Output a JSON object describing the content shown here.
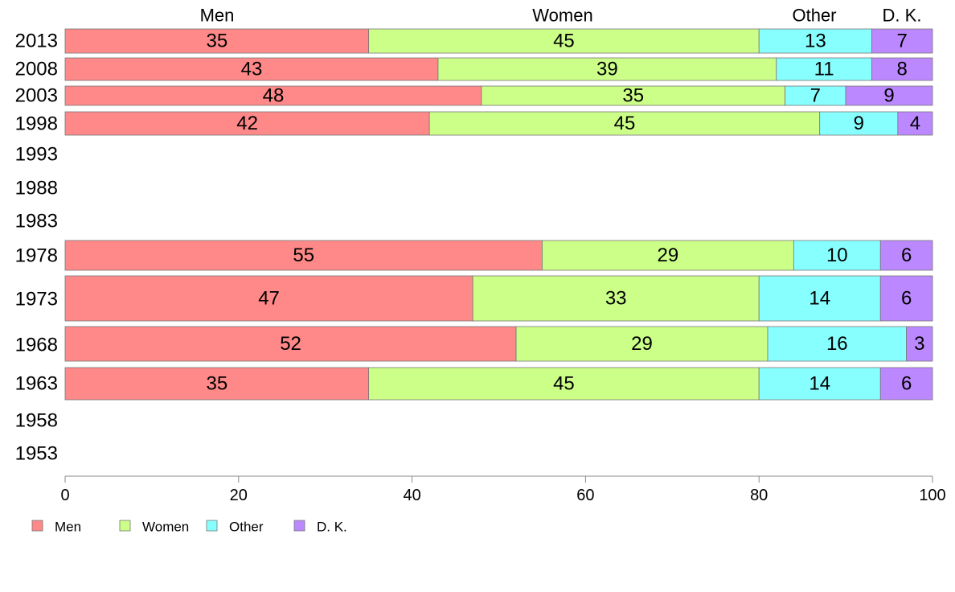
{
  "chart_data": {
    "type": "bar",
    "orientation": "horizontal",
    "stacked": true,
    "title": "",
    "xlabel": "",
    "ylabel": "",
    "xlim": [
      0,
      100
    ],
    "x_ticks": [
      "0",
      "20",
      "40",
      "60",
      "80",
      "100"
    ],
    "categories": [
      "2013",
      "2008",
      "2003",
      "1998",
      "1993",
      "1988",
      "1983",
      "1978",
      "1973",
      "1968",
      "1963",
      "1958",
      "1953"
    ],
    "series": [
      {
        "name": "Men",
        "color": "#ff8888",
        "values": [
          35,
          43,
          48,
          42,
          null,
          null,
          null,
          55,
          47,
          52,
          35,
          null,
          null
        ]
      },
      {
        "name": "Women",
        "color": "#ccff88",
        "values": [
          45,
          39,
          35,
          45,
          null,
          null,
          null,
          29,
          33,
          29,
          45,
          null,
          null
        ]
      },
      {
        "name": "Other",
        "color": "#88ffff",
        "values": [
          13,
          11,
          7,
          9,
          null,
          null,
          null,
          10,
          14,
          16,
          14,
          null,
          null
        ]
      },
      {
        "name": "D. K.",
        "color": "#bb88ff",
        "values": [
          7,
          8,
          9,
          4,
          null,
          null,
          null,
          6,
          6,
          3,
          6,
          null,
          null
        ]
      }
    ],
    "top_labels": [
      "Men",
      "Women",
      "Other",
      "D. K."
    ],
    "legend": {
      "position": "bottom-left",
      "entries": [
        "Men",
        "Women",
        "Other",
        "D. K."
      ]
    },
    "grid": false
  }
}
